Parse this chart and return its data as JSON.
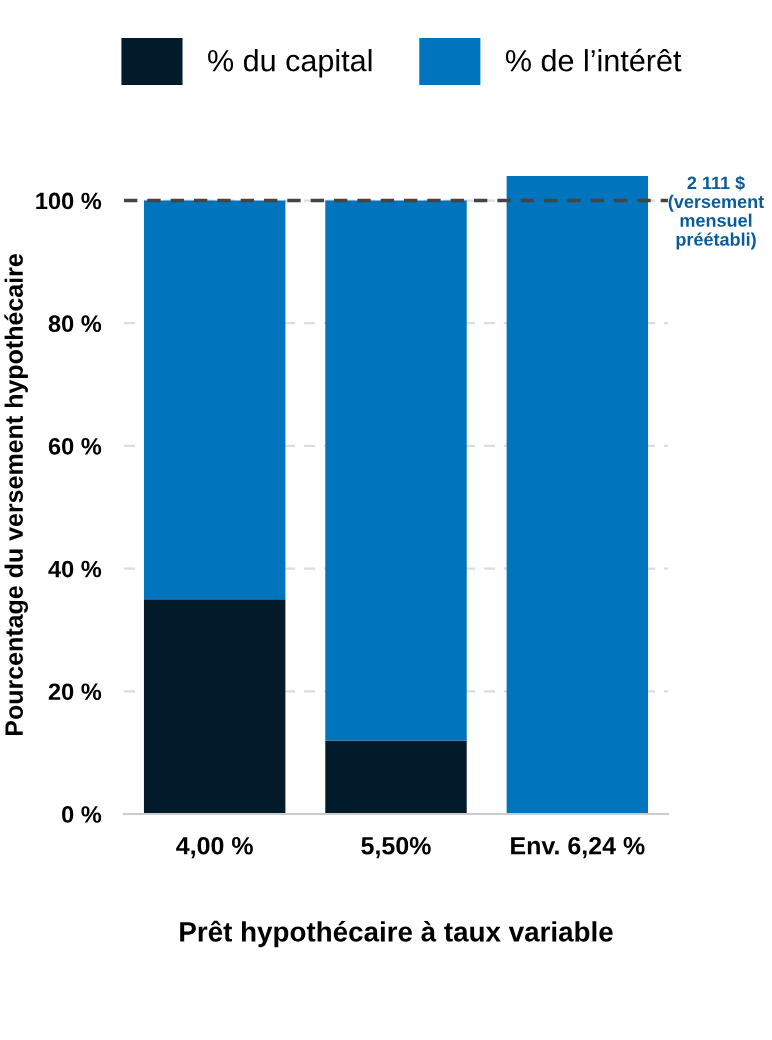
{
  "chart_data": {
    "type": "bar",
    "stacked": true,
    "xlabel": "Prêt hypothécaire à taux variable",
    "ylabel": "Pourcentage du versement hypothécaire",
    "categories": [
      "4,00 %",
      "5,50%",
      "Env. 6,24 %"
    ],
    "series": [
      {
        "name": "% du capital",
        "color": "#021b2b",
        "values": [
          35,
          12,
          0
        ]
      },
      {
        "name": "% de l’intérêt",
        "color": "#0074bd",
        "values": [
          65,
          88,
          104
        ]
      }
    ],
    "ylim": [
      0,
      104
    ],
    "yticks": [
      {
        "value": 0,
        "label": "0 %"
      },
      {
        "value": 20,
        "label": "20 %"
      },
      {
        "value": 40,
        "label": "40 %"
      },
      {
        "value": 60,
        "label": "60 %"
      },
      {
        "value": 80,
        "label": "80 %"
      },
      {
        "value": 100,
        "label": "100 %"
      }
    ],
    "grid": "y",
    "legend": "top",
    "ref_lines": [
      {
        "axis": "y",
        "value": 100,
        "label": null,
        "color": "#444444",
        "line_style": "dashed"
      }
    ],
    "annotations": [
      "2 111 $\n(versement\nmensuel\npréétabli)"
    ]
  }
}
